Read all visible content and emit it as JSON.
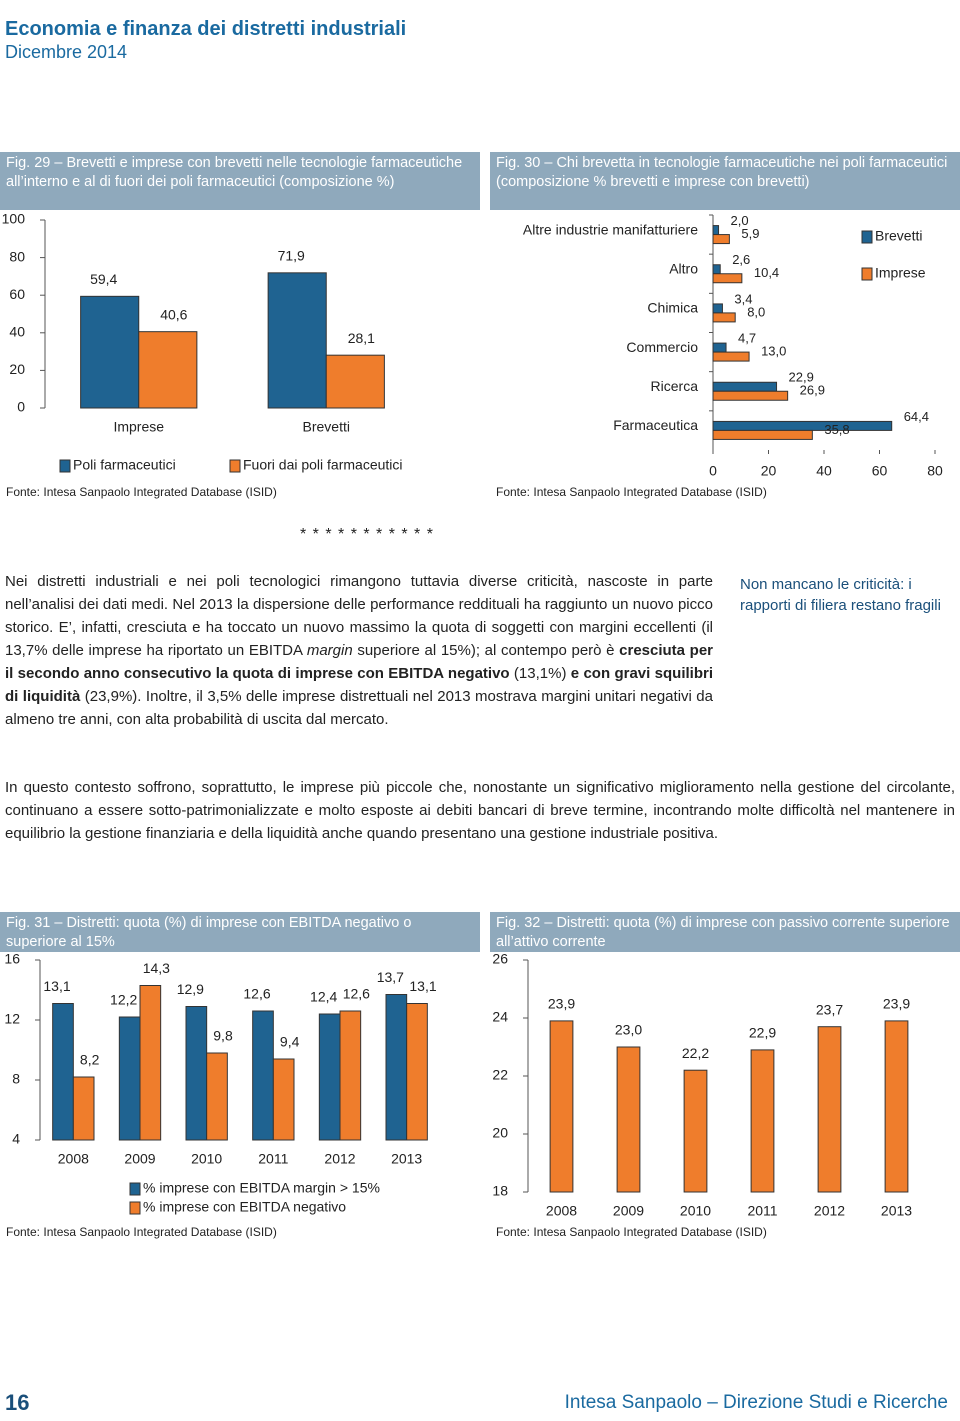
{
  "header": {
    "title": "Economia e finanza dei distretti industriali",
    "date": "Dicembre 2014"
  },
  "chart_data": [
    {
      "type": "bar",
      "title": "Fig. 29 – Brevetti e imprese con brevetti nelle tecnologie farmaceutiche all’interno e al di fuori dei poli farmaceutici (composizione %)",
      "source": "Fonte: Intesa Sanpaolo Integrated Database (ISID)",
      "categories": [
        "Imprese",
        "Brevetti"
      ],
      "series": [
        {
          "name": "Poli farmaceutici",
          "color": "#1f6391",
          "values": [
            59.4,
            71.9
          ],
          "value_labels": [
            "59,4",
            "71,9"
          ]
        },
        {
          "name": "Fuori dai poli farmaceutici",
          "color": "#ef7d2c",
          "values": [
            40.6,
            28.1
          ],
          "value_labels": [
            "40,6",
            "28,1"
          ]
        }
      ],
      "ylim": [
        0,
        100
      ],
      "yticks": [
        0,
        20,
        40,
        60,
        80,
        100
      ],
      "legend": "bottom"
    },
    {
      "type": "barh",
      "title": "Fig. 30 – Chi brevetta in tecnologie farmaceutiche nei poli farmaceutici (composizione % brevetti e imprese con brevetti)",
      "source": "Fonte: Intesa Sanpaolo Integrated Database (ISID)",
      "categories": [
        "Altre industrie manifatturiere",
        "Altro",
        "Chimica",
        "Commercio",
        "Ricerca",
        "Farmaceutica"
      ],
      "series": [
        {
          "name": "Brevetti",
          "color": "#1f6391",
          "values": [
            2.0,
            2.6,
            3.4,
            4.7,
            22.9,
            64.4
          ],
          "value_labels": [
            "2,0",
            "2,6",
            "3,4",
            "4,7",
            "22,9",
            "64,4"
          ]
        },
        {
          "name": "Imprese",
          "color": "#ef7d2c",
          "values": [
            5.9,
            10.4,
            8.0,
            13.0,
            26.9,
            35.8
          ],
          "value_labels": [
            "5,9",
            "10,4",
            "8,0",
            "13,0",
            "26,9",
            "35,8"
          ]
        }
      ],
      "xlim": [
        0,
        80
      ],
      "xticks": [
        0,
        20,
        40,
        60,
        80
      ],
      "legend": "top-right"
    },
    {
      "type": "bar",
      "title": "Fig. 31 – Distretti: quota (%) di imprese con EBITDA negativo o superiore al 15%",
      "source": "Fonte: Intesa Sanpaolo Integrated Database (ISID)",
      "categories": [
        "2008",
        "2009",
        "2010",
        "2011",
        "2012",
        "2013"
      ],
      "series": [
        {
          "name": "% imprese con EBITDA margin > 15%",
          "color": "#1f6391",
          "values": [
            13.1,
            12.2,
            12.9,
            12.6,
            12.4,
            13.7
          ],
          "value_labels": [
            "13,1",
            "12,2",
            "12,9",
            "12,6",
            "12,4",
            "13,7"
          ]
        },
        {
          "name": "% imprese con EBITDA negativo",
          "color": "#ef7d2c",
          "values": [
            8.2,
            14.3,
            9.8,
            9.4,
            12.6,
            13.1
          ],
          "value_labels": [
            "8,2",
            "14,3",
            "9,8",
            "9,4",
            "12,6",
            "13,1"
          ]
        }
      ],
      "ylim": [
        4,
        16
      ],
      "yticks": [
        4,
        8,
        12,
        16
      ],
      "legend": "bottom"
    },
    {
      "type": "bar",
      "title": "Fig. 32 – Distretti: quota (%) di imprese con passivo corrente superiore all’attivo corrente",
      "source": "Fonte: Intesa Sanpaolo Integrated Database (ISID)",
      "categories": [
        "2008",
        "2009",
        "2010",
        "2011",
        "2012",
        "2013"
      ],
      "values": [
        23.9,
        23.0,
        22.2,
        22.9,
        23.7,
        23.9
      ],
      "value_labels": [
        "23,9",
        "23,0",
        "22,2",
        "22,9",
        "23,7",
        "23,9"
      ],
      "color": "#ef7d2c",
      "ylim": [
        18,
        26
      ],
      "yticks": [
        18,
        20,
        22,
        24,
        26
      ]
    }
  ],
  "separator": "* * * * * * * * * * *",
  "paragraphs": [
    [
      "Nei distretti industriali e nei poli tecnologici rimangono tuttavia diverse criticità, nascoste in parte nell’analisi dei dati medi. Nel 2013 la dispersione delle performance reddituali ha raggiunto un nuovo picco storico. E’, infatti, cresciuta e ha toccato un nuovo massimo la quota di soggetti con margini eccellenti (il 13,7% delle imprese ha riportato un EBITDA ",
      "margin",
      " superiore al 15%); al contempo però è ",
      "cresciuta per il secondo anno consecutivo la quota di imprese con EBITDA negativo",
      " (13,1%) ",
      "e con gravi squilibri di liquidità",
      " (23,9%). Inoltre, il 3,5% delle imprese distrettuali nel 2013 mostrava margini unitari negativi da almeno tre anni, con alta probabilità di uscita dal mercato."
    ],
    "In questo contesto soffrono, soprattutto, le imprese più piccole che, nonostante un significativo miglioramento nella gestione del circolante, continuano a essere sotto-patrimonializzate e molto esposte ai debiti bancari di breve termine, incontrando molte difficoltà nel mantenere in equilibrio la gestione finanziaria e della liquidità anche quando presentano una gestione industriale positiva."
  ],
  "sidenote": "Non mancano le criticità: i rapporti di filiera restano fragili",
  "footer": {
    "page": "16",
    "publisher": "Intesa Sanpaolo – Direzione Studi e Ricerche"
  }
}
